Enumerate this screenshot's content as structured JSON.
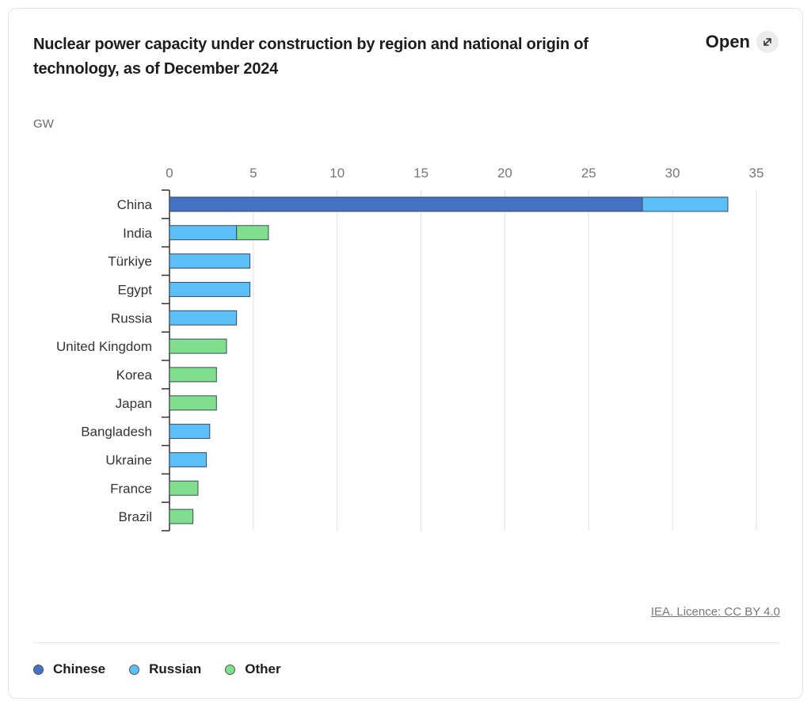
{
  "header": {
    "title": "Nuclear power capacity under construction by region and national origin of technology, as of December 2024",
    "open_label": "Open",
    "open_icon": "expand-arrow-icon"
  },
  "footer": {
    "source_label": "IEA. Licence: CC BY 4.0"
  },
  "legend": [
    {
      "name": "Chinese",
      "color": "#4472c4"
    },
    {
      "name": "Russian",
      "color": "#5bc0f8"
    },
    {
      "name": "Other",
      "color": "#7fdf8c"
    }
  ],
  "chart_data": {
    "type": "bar",
    "orientation": "horizontal",
    "stacked": true,
    "title": "Nuclear power capacity under construction by region and national origin of technology, as of December 2024",
    "unit": "GW",
    "xlim": [
      0,
      35
    ],
    "xticks": [
      0,
      5,
      10,
      15,
      20,
      25,
      30,
      35
    ],
    "grid": true,
    "legend_position": "bottom-left",
    "categories": [
      "China",
      "India",
      "Türkiye",
      "Egypt",
      "Russia",
      "United Kingdom",
      "Korea",
      "Japan",
      "Bangladesh",
      "Ukraine",
      "France",
      "Brazil"
    ],
    "series": [
      {
        "name": "Chinese",
        "color": "#4472c4",
        "values": [
          28.2,
          0,
          0,
          0,
          0,
          0,
          0,
          0,
          0,
          0,
          0,
          0
        ]
      },
      {
        "name": "Russian",
        "color": "#5bc0f8",
        "values": [
          5.1,
          4.0,
          4.8,
          4.8,
          4.0,
          0,
          0,
          0,
          2.4,
          2.2,
          0,
          0
        ]
      },
      {
        "name": "Other",
        "color": "#7fdf8c",
        "values": [
          0,
          1.9,
          0,
          0,
          0,
          3.4,
          2.8,
          2.8,
          0,
          0,
          1.7,
          1.4
        ]
      }
    ]
  }
}
